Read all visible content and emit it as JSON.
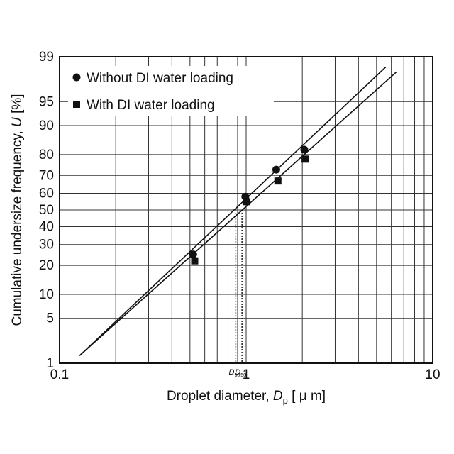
{
  "chart_data": {
    "type": "scatter",
    "scale": {
      "x": "log",
      "y": "probability (log-normal)"
    },
    "xlim": [
      0.1,
      10
    ],
    "ylim": [
      1,
      99
    ],
    "grid": true,
    "legend_position": "top-left",
    "xlabel": {
      "main": "Droplet diameter, ",
      "var": "D",
      "sub": "p",
      "unit": " [ μ m]"
    },
    "ylabel": {
      "main": "Cumulative undersize frequency, ",
      "var": "U",
      "unit": " [%]"
    },
    "x_tick_labels": [
      {
        "value": 0.1,
        "label": "0.1"
      },
      {
        "value": 1,
        "label": "1"
      },
      {
        "value": 10,
        "label": "10"
      }
    ],
    "y_tick_labels": [
      {
        "value": 1,
        "label": "1"
      },
      {
        "value": 5,
        "label": "5"
      },
      {
        "value": 10,
        "label": "10"
      },
      {
        "value": 20,
        "label": "20"
      },
      {
        "value": 30,
        "label": "30"
      },
      {
        "value": 40,
        "label": "40"
      },
      {
        "value": 50,
        "label": "50"
      },
      {
        "value": 60,
        "label": "60"
      },
      {
        "value": 70,
        "label": "70"
      },
      {
        "value": 80,
        "label": "80"
      },
      {
        "value": 90,
        "label": "90"
      },
      {
        "value": 95,
        "label": "95"
      },
      {
        "value": 99,
        "label": "99"
      }
    ],
    "x_grid": [
      0.1,
      0.2,
      0.3,
      0.4,
      0.5,
      0.6,
      0.7,
      0.8,
      0.9,
      1,
      2,
      3,
      4,
      5,
      6,
      7,
      8,
      9,
      10
    ],
    "y_grid": [
      1,
      5,
      10,
      20,
      30,
      40,
      50,
      60,
      70,
      80,
      90,
      95,
      99
    ],
    "series": [
      {
        "name": "Without DI water loading",
        "marker": "circle",
        "points": [
          {
            "x": 0.52,
            "y": 25
          },
          {
            "x": 0.99,
            "y": 58
          },
          {
            "x": 1.45,
            "y": 73
          },
          {
            "x": 2.05,
            "y": 82
          }
        ],
        "fit_line": [
          {
            "x": 0.128,
            "y": 1.35
          },
          {
            "x": 5.6,
            "y": 98.5
          }
        ]
      },
      {
        "name": "With DI water loading",
        "marker": "square",
        "points": [
          {
            "x": 0.53,
            "y": 22
          },
          {
            "x": 1.0,
            "y": 55
          },
          {
            "x": 1.48,
            "y": 67
          },
          {
            "x": 2.07,
            "y": 78
          }
        ],
        "fit_line": [
          {
            "x": 0.128,
            "y": 1.35
          },
          {
            "x": 6.4,
            "y": 98.2
          }
        ]
      }
    ],
    "annotations": [
      {
        "type": "median",
        "series": "With DI water loading",
        "x": 0.88,
        "y": 50,
        "label": "D",
        "label_sub": "50"
      },
      {
        "type": "median",
        "series": "Without DI water loading",
        "x": 0.95,
        "y": 50,
        "label": "D",
        "label_sub": "50"
      }
    ]
  }
}
